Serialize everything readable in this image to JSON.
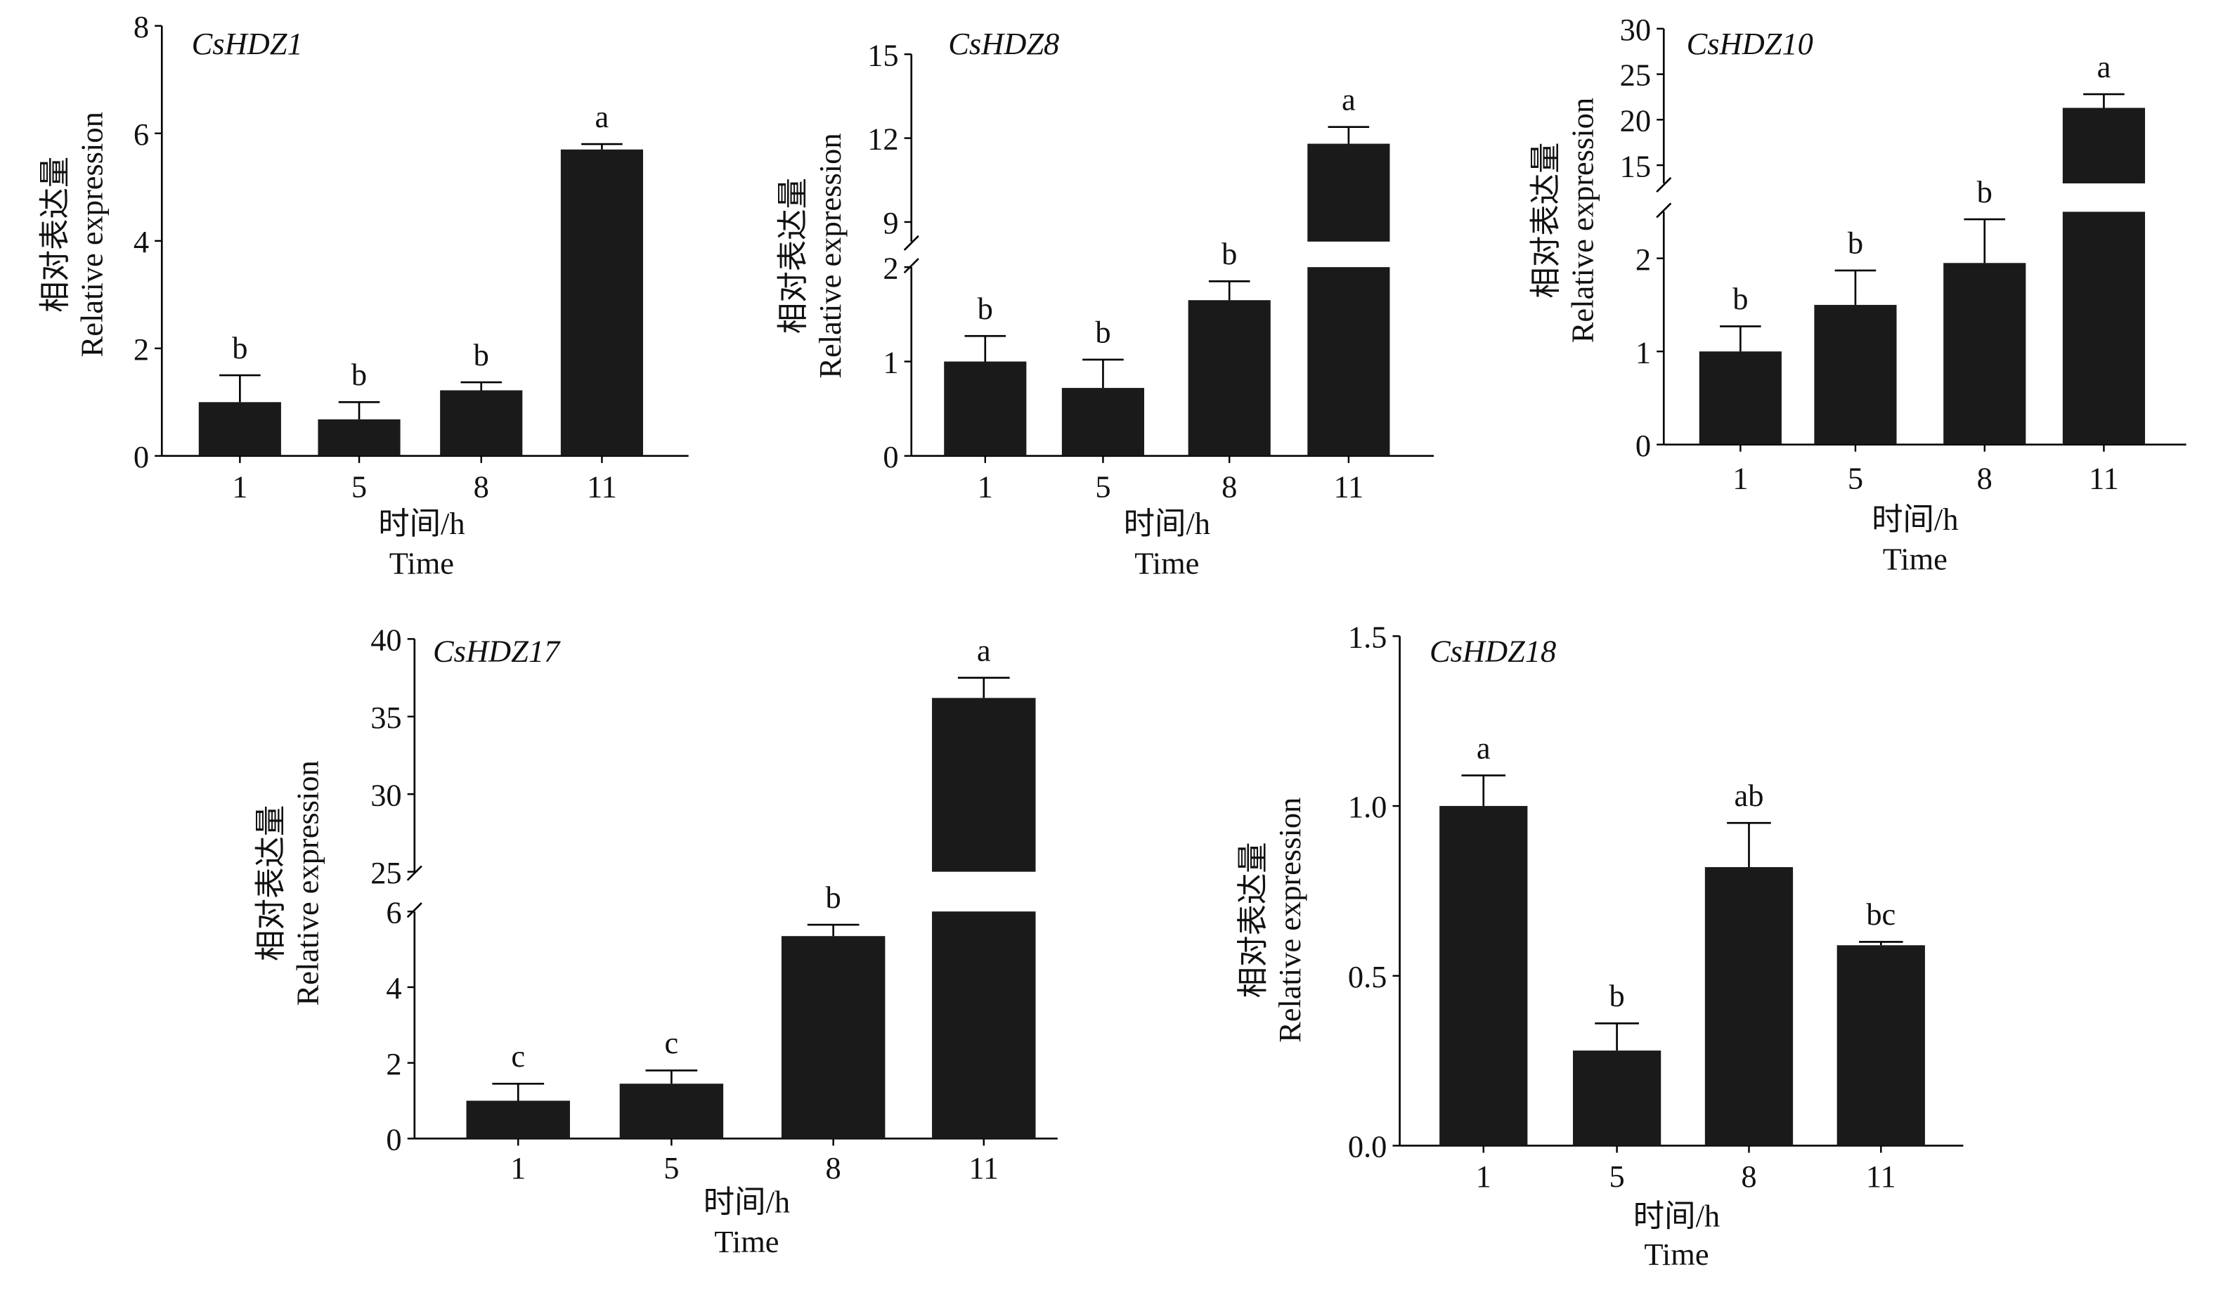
{
  "ylabel_cn": "相对表达量",
  "ylabel_en": "Relative expression",
  "xlabel_cn": "时间/h",
  "xlabel_en": "Time",
  "bar_color": "#1a1a1a",
  "chart_data": [
    {
      "type": "bar",
      "title": "CsHDZ1",
      "categories": [
        "1",
        "5",
        "8",
        "11"
      ],
      "values": [
        1.0,
        0.68,
        1.22,
        5.7
      ],
      "errors": [
        0.5,
        0.32,
        0.15,
        0.1
      ],
      "letters": [
        "b",
        "b",
        "b",
        "a"
      ],
      "ylim": [
        0,
        8
      ],
      "yticks": [
        "0",
        "2",
        "4",
        "6",
        "8"
      ],
      "ytick_values": [
        0,
        2,
        4,
        6,
        8
      ],
      "xlabel": "时间/h Time",
      "ylabel": "相对表达量 Relative expression"
    },
    {
      "type": "bar",
      "title": "CsHDZ8",
      "categories": [
        "1",
        "5",
        "8",
        "11"
      ],
      "values": [
        1.0,
        0.72,
        1.65,
        11.8
      ],
      "errors": [
        0.27,
        0.3,
        0.2,
        0.6
      ],
      "letters": [
        "b",
        "b",
        "b",
        "a"
      ],
      "axis_break": [
        2,
        8.3
      ],
      "ylim": [
        0,
        15
      ],
      "yticks": [
        "0",
        "1",
        "2",
        "9",
        "12",
        "15"
      ],
      "ytick_values": [
        0,
        1,
        2,
        9,
        12,
        15
      ],
      "xlabel": "时间/h Time",
      "ylabel": "相对表达量 Relative expression"
    },
    {
      "type": "bar",
      "title": "CsHDZ10",
      "categories": [
        "1",
        "5",
        "8",
        "11"
      ],
      "values": [
        1.0,
        1.5,
        1.95,
        21.3
      ],
      "errors": [
        0.27,
        0.37,
        0.47,
        1.5
      ],
      "letters": [
        "b",
        "b",
        "b",
        "a"
      ],
      "axis_break": [
        2.5,
        13
      ],
      "ylim": [
        0,
        30
      ],
      "yticks": [
        "0",
        "1",
        "2",
        "15",
        "20",
        "25",
        "30"
      ],
      "ytick_values": [
        0,
        1,
        2,
        15,
        20,
        25,
        30
      ],
      "xlabel": "时间/h Time",
      "ylabel": "相对表达量 Relative expression"
    },
    {
      "type": "bar",
      "title": "CsHDZ17",
      "categories": [
        "1",
        "5",
        "8",
        "11"
      ],
      "values": [
        1.0,
        1.45,
        5.35,
        36.2
      ],
      "errors": [
        0.45,
        0.35,
        0.3,
        1.3
      ],
      "letters": [
        "c",
        "c",
        "b",
        "a"
      ],
      "axis_break": [
        6,
        25
      ],
      "ylim": [
        0,
        40
      ],
      "yticks": [
        "0",
        "2",
        "4",
        "6",
        "25",
        "30",
        "35",
        "40"
      ],
      "ytick_values": [
        0,
        2,
        4,
        6,
        25,
        30,
        35,
        40
      ],
      "xlabel": "时间/h Time",
      "ylabel": "相对表达量 Relative expression"
    },
    {
      "type": "bar",
      "title": "CsHDZ18",
      "categories": [
        "1",
        "5",
        "8",
        "11"
      ],
      "values": [
        1.0,
        0.28,
        0.82,
        0.59
      ],
      "errors": [
        0.09,
        0.08,
        0.13,
        0.01
      ],
      "letters": [
        "a",
        "b",
        "ab",
        "bc"
      ],
      "ylim": [
        0,
        1.5
      ],
      "yticks": [
        "0.0",
        "0.5",
        "1.0",
        "1.5"
      ],
      "ytick_values": [
        0,
        0.5,
        1.0,
        1.5
      ],
      "xlabel": "时间/h Time",
      "ylabel": "相对表达量 Relative expression"
    }
  ]
}
